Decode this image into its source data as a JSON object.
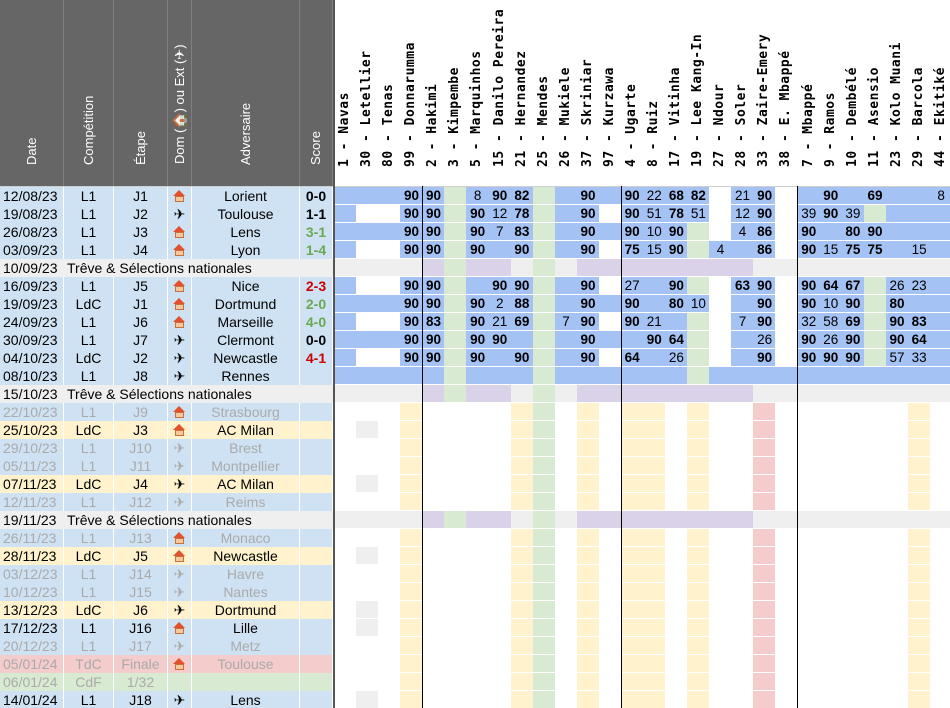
{
  "sheet": {
    "headers": [
      "Date",
      "Compétition",
      "Étape",
      "Dom (🏠) ou Ext (✈)",
      "Adversaire",
      "Score"
    ],
    "home_icon": "house-icon",
    "away_icon": "airplane-icon",
    "colors": {
      "header_bg": "#666666",
      "row_blue": "#cfe2f3",
      "row_yellow": "#fff2cc",
      "row_pink": "#f4cccc",
      "row_green": "#d9ead3",
      "row_gray": "#efefef",
      "played_blue": "#a4c2f4",
      "bench_white": "#ffffff",
      "score_green": "#6aa84f",
      "score_red": "#cc0000",
      "highlight_yellow": "#ffff00"
    }
  },
  "players": [
    {
      "label": "1 - Navas"
    },
    {
      "label": "30 - Letellier"
    },
    {
      "label": "80 - Tenas"
    },
    {
      "label": "99 - Donnarumma"
    },
    {
      "label": "2 - Hakimi"
    },
    {
      "label": "3 - Kimpembe"
    },
    {
      "label": "5 - Marquinhos"
    },
    {
      "label": "15 - Danilo Pereira"
    },
    {
      "label": "21 - Hernandez"
    },
    {
      "label": "25 - Mendes"
    },
    {
      "label": "26 - Mukiele"
    },
    {
      "label": "37 - Skriniar"
    },
    {
      "label": "97 - Kurzawa"
    },
    {
      "label": "4 - Ugarte"
    },
    {
      "label": "8 - Ruiz"
    },
    {
      "label": "17 - Vitinha"
    },
    {
      "label": "19 - Lee Kang-In"
    },
    {
      "label": "27 - Ndour"
    },
    {
      "label": "28 - Soler"
    },
    {
      "label": "33 - Zaire-Emery"
    },
    {
      "label": "38 - E. Mbappé"
    },
    {
      "label": "7 - Mbappé"
    },
    {
      "label": "9 - Ramos"
    },
    {
      "label": "10 - Dembélé"
    },
    {
      "label": "11 - Asensio"
    },
    {
      "label": "23 - Kolo Muani"
    },
    {
      "label": "29 - Barcola"
    },
    {
      "label": "44 - Ekitiké"
    }
  ],
  "matches": [
    {
      "date": "12/08/23",
      "comp": "L1",
      "stage": "J1",
      "venue": "home",
      "opponent": "Lorient",
      "score": "0-0",
      "score_color": "#000000",
      "kind": "blue",
      "played": true,
      "mins": [
        "",
        "",
        "",
        "90",
        "90",
        "",
        "8",
        "90",
        "82",
        "",
        "",
        "90",
        "",
        "90",
        "22",
        "68",
        "82",
        "",
        "21",
        "90",
        "",
        "",
        "90",
        "",
        "69",
        "",
        "",
        "8"
      ]
    },
    {
      "date": "19/08/23",
      "comp": "L1",
      "stage": "J2",
      "venue": "away",
      "opponent": "Toulouse",
      "score": "1-1",
      "score_color": "#000000",
      "kind": "blue",
      "played": true,
      "mins": [
        "",
        "",
        "",
        "90",
        "90",
        "",
        "90",
        "12",
        "78",
        "",
        "",
        "90",
        "",
        "90",
        "51",
        "78",
        "51",
        "",
        "12",
        "90",
        "",
        "39",
        "90",
        "39",
        "",
        "",
        "",
        ""
      ]
    },
    {
      "date": "26/08/23",
      "comp": "L1",
      "stage": "J3",
      "venue": "home",
      "opponent": "Lens",
      "score": "3-1",
      "score_color": "#6aa84f",
      "kind": "blue",
      "played": true,
      "mins": [
        "",
        "",
        "",
        "90",
        "90",
        "",
        "90",
        "7",
        "83",
        "",
        "",
        "90",
        "",
        "90",
        "10",
        "90",
        "",
        "",
        "4",
        "86",
        "",
        "90",
        "",
        "80",
        "90",
        "",
        "",
        ""
      ]
    },
    {
      "date": "03/09/23",
      "comp": "L1",
      "stage": "J4",
      "venue": "home",
      "opponent": "Lyon",
      "score": "1-4",
      "score_color": "#6aa84f",
      "kind": "blue",
      "played": true,
      "mins": [
        "",
        "",
        "",
        "90",
        "90",
        "",
        "90",
        "",
        "90",
        "",
        "",
        "90",
        "",
        "75",
        "15",
        "90",
        "",
        "4",
        "",
        "86",
        "",
        "90",
        "15",
        "75",
        "75",
        "",
        "15",
        ""
      ]
    },
    {
      "date": "10/09/23",
      "comp": "",
      "stage": "",
      "venue": "",
      "opponent": "Trêve & Sélections nationales",
      "score": "",
      "score_color": "#000000",
      "kind": "break",
      "played": false,
      "mins": []
    },
    {
      "date": "16/09/23",
      "comp": "L1",
      "stage": "J5",
      "venue": "home",
      "opponent": "Nice",
      "score": "2-3",
      "score_color": "#cc0000",
      "kind": "blue",
      "played": true,
      "mins": [
        "",
        "",
        "",
        "90",
        "90",
        "",
        "",
        "90",
        "90",
        "",
        "",
        "90",
        "",
        "27",
        "",
        "90",
        "",
        "",
        "63",
        "90",
        "",
        "90",
        "64",
        "67",
        "",
        "26",
        "23",
        ""
      ]
    },
    {
      "date": "19/09/23",
      "comp": "LdC",
      "stage": "J1",
      "venue": "home",
      "opponent": "Dortmund",
      "score": "2-0",
      "score_color": "#6aa84f",
      "kind": "blue",
      "played": true,
      "mins": [
        "",
        "",
        "",
        "90",
        "90",
        "",
        "90",
        "2",
        "88",
        "",
        "",
        "90",
        "",
        "90",
        "",
        "80",
        "10",
        "",
        "",
        "90",
        "",
        "90",
        "10",
        "90",
        "",
        "80",
        "",
        ""
      ]
    },
    {
      "date": "24/09/23",
      "comp": "L1",
      "stage": "J6",
      "venue": "home",
      "opponent": "Marseille",
      "score": "4-0",
      "score_color": "#6aa84f",
      "kind": "blue",
      "played": true,
      "mins": [
        "",
        "",
        "",
        "90",
        "83",
        "",
        "90",
        "21",
        "69",
        "",
        "7",
        "90",
        "",
        "90",
        "21",
        "",
        "",
        "",
        "7",
        "90",
        "",
        "32",
        "58",
        "69",
        "",
        "90",
        "83",
        ""
      ]
    },
    {
      "date": "30/09/23",
      "comp": "L1",
      "stage": "J7",
      "venue": "away",
      "opponent": "Clermont",
      "score": "0-0",
      "score_color": "#000000",
      "kind": "blue",
      "played": true,
      "mins": [
        "",
        "",
        "",
        "90",
        "90",
        "",
        "90",
        "90",
        "",
        "",
        "",
        "90",
        "",
        "",
        "90",
        "64",
        "",
        "",
        "",
        "26",
        "",
        "90",
        "26",
        "90",
        "",
        "90",
        "64",
        ""
      ]
    },
    {
      "date": "04/10/23",
      "comp": "LdC",
      "stage": "J2",
      "venue": "away",
      "opponent": "Newcastle",
      "score": "4-1",
      "score_color": "#cc0000",
      "kind": "blue",
      "played": true,
      "mins": [
        "",
        "",
        "",
        "90",
        "90",
        "",
        "90",
        "",
        "90",
        "",
        "",
        "90",
        "",
        "64",
        "",
        "26",
        "",
        "",
        "",
        "90",
        "",
        "90",
        "90",
        "90",
        "",
        "57",
        "33",
        ""
      ]
    },
    {
      "date": "08/10/23",
      "comp": "L1",
      "stage": "J8",
      "venue": "away",
      "opponent": "Rennes",
      "score": "",
      "score_color": "#000000",
      "kind": "blue",
      "played": true,
      "mins": []
    },
    {
      "date": "15/10/23",
      "comp": "",
      "stage": "",
      "venue": "",
      "opponent": "Trêve & Sélections nationales",
      "score": "",
      "score_color": "#000000",
      "kind": "break",
      "played": false,
      "mins": []
    },
    {
      "date": "22/10/23",
      "comp": "L1",
      "stage": "J9",
      "venue": "home",
      "opponent": "Strasbourg",
      "score": "",
      "score_color": "#000000",
      "kind": "blue",
      "faded": true,
      "played": false,
      "mins": []
    },
    {
      "date": "25/10/23",
      "comp": "LdC",
      "stage": "J3",
      "venue": "home",
      "opponent": "AC Milan",
      "score": "",
      "score_color": "#000000",
      "kind": "yellow",
      "played": false,
      "mins": []
    },
    {
      "date": "29/10/23",
      "comp": "L1",
      "stage": "J10",
      "venue": "away",
      "opponent": "Brest",
      "score": "",
      "score_color": "#000000",
      "kind": "blue",
      "faded": true,
      "played": false,
      "mins": []
    },
    {
      "date": "05/11/23",
      "comp": "L1",
      "stage": "J11",
      "venue": "away",
      "opponent": "Montpellier",
      "score": "",
      "score_color": "#000000",
      "kind": "blue",
      "faded": true,
      "played": false,
      "mins": []
    },
    {
      "date": "07/11/23",
      "comp": "LdC",
      "stage": "J4",
      "venue": "away",
      "opponent": "AC Milan",
      "score": "",
      "score_color": "#000000",
      "kind": "yellow",
      "played": false,
      "mins": []
    },
    {
      "date": "12/11/23",
      "comp": "L1",
      "stage": "J12",
      "venue": "away",
      "opponent": "Reims",
      "score": "",
      "score_color": "#000000",
      "kind": "blue",
      "faded": true,
      "played": false,
      "mins": []
    },
    {
      "date": "19/11/23",
      "comp": "",
      "stage": "",
      "venue": "",
      "opponent": "Trêve & Sélections nationales",
      "score": "",
      "score_color": "#000000",
      "kind": "break",
      "played": false,
      "mins": []
    },
    {
      "date": "26/11/23",
      "comp": "L1",
      "stage": "J13",
      "venue": "home",
      "opponent": "Monaco",
      "score": "",
      "score_color": "#000000",
      "kind": "blue",
      "faded": true,
      "played": false,
      "mins": []
    },
    {
      "date": "28/11/23",
      "comp": "LdC",
      "stage": "J5",
      "venue": "home",
      "opponent": "Newcastle",
      "score": "",
      "score_color": "#000000",
      "kind": "yellow",
      "played": false,
      "mins": []
    },
    {
      "date": "03/12/23",
      "comp": "L1",
      "stage": "J14",
      "venue": "away",
      "opponent": "Havre",
      "score": "",
      "score_color": "#000000",
      "kind": "blue",
      "faded": true,
      "played": false,
      "mins": []
    },
    {
      "date": "10/12/23",
      "comp": "L1",
      "stage": "J15",
      "venue": "away",
      "opponent": "Nantes",
      "score": "",
      "score_color": "#000000",
      "kind": "blue",
      "faded": true,
      "played": false,
      "mins": []
    },
    {
      "date": "13/12/23",
      "comp": "LdC",
      "stage": "J6",
      "venue": "away",
      "opponent": "Dortmund",
      "score": "",
      "score_color": "#000000",
      "kind": "yellow",
      "played": false,
      "mins": []
    },
    {
      "date": "17/12/23",
      "comp": "L1",
      "stage": "J16",
      "venue": "home",
      "opponent": "Lille",
      "score": "",
      "score_color": "#000000",
      "kind": "blue",
      "played": false,
      "mins": []
    },
    {
      "date": "20/12/23",
      "comp": "L1",
      "stage": "J17",
      "venue": "away",
      "opponent": "Metz",
      "score": "",
      "score_color": "#000000",
      "kind": "blue",
      "faded": true,
      "played": false,
      "mins": []
    },
    {
      "date": "05/01/24",
      "comp": "TdC",
      "stage": "Finale",
      "venue": "home",
      "opponent": "Toulouse",
      "score": "",
      "score_color": "#000000",
      "kind": "pink",
      "faded": true,
      "played": false,
      "mins": []
    },
    {
      "date": "06/01/24",
      "comp": "CdF",
      "stage": "1/32",
      "venue": "",
      "opponent": "",
      "score": "",
      "score_color": "#000000",
      "kind": "green",
      "faded": true,
      "played": false,
      "mins": []
    },
    {
      "date": "14/01/24",
      "comp": "L1",
      "stage": "J18",
      "venue": "away",
      "opponent": "Lens",
      "score": "",
      "score_color": "#000000",
      "kind": "blue",
      "played": false,
      "mins": []
    }
  ]
}
